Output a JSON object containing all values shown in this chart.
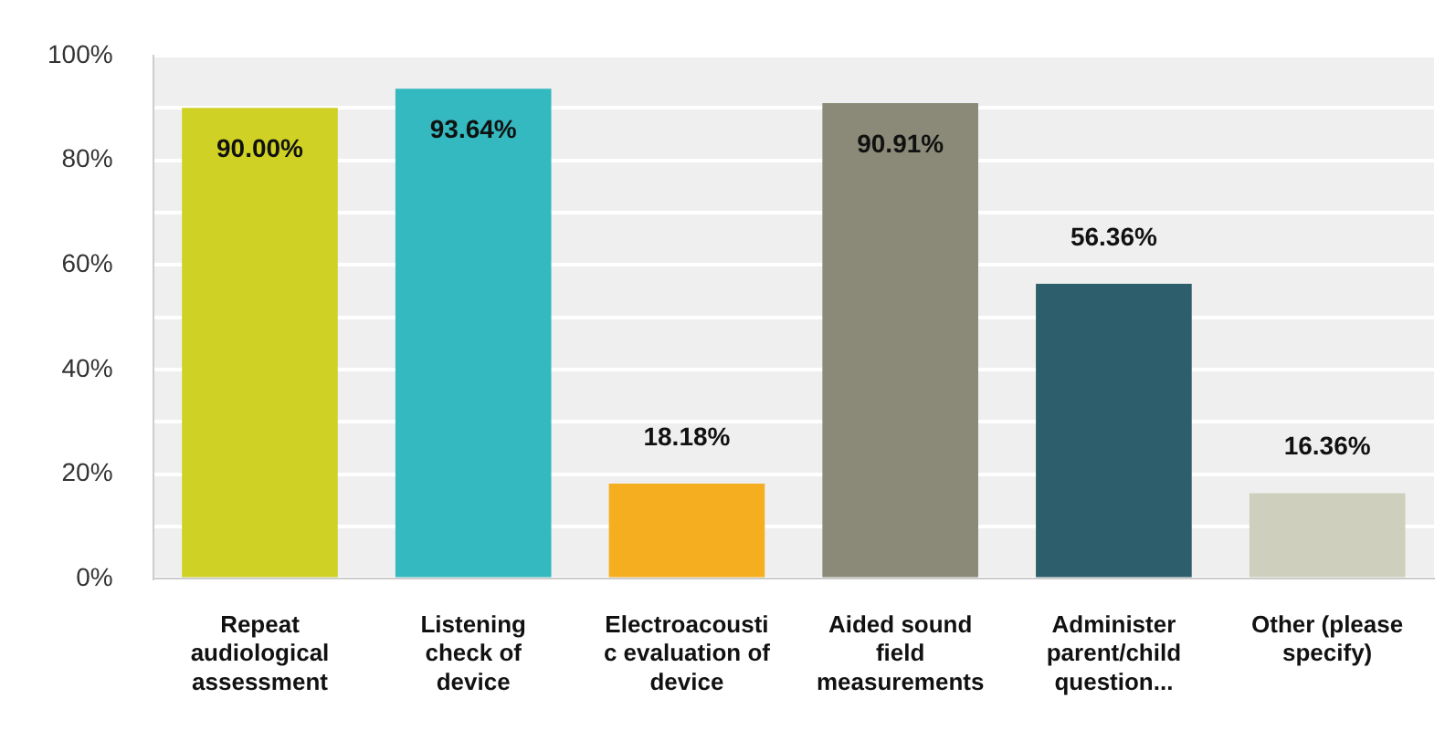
{
  "chart_data": {
    "type": "bar",
    "categories": [
      "Repeat audiological assessment",
      "Listening check of device",
      "Electroacoustic evaluation of device",
      "Aided sound field measurements",
      "Administer parent/child question...",
      "Other (please specify)"
    ],
    "values": [
      90.0,
      93.64,
      18.18,
      90.91,
      56.36,
      16.36
    ],
    "colors": [
      "#cfd125",
      "#33b9bf",
      "#f5ae1f",
      "#8b8a78",
      "#2d5e6b",
      "#cfcfbe"
    ],
    "value_labels": [
      "90.00%",
      "93.64%",
      "18.18%",
      "90.91%",
      "56.36%",
      "16.36%"
    ],
    "ylim": [
      0,
      100
    ],
    "yticks": [
      {
        "value": 0,
        "label": "0%"
      },
      {
        "value": 10,
        "label": null
      },
      {
        "value": 20,
        "label": "20%"
      },
      {
        "value": 30,
        "label": null
      },
      {
        "value": 40,
        "label": "40%"
      },
      {
        "value": 50,
        "label": null
      },
      {
        "value": 60,
        "label": "60%"
      },
      {
        "value": 70,
        "label": null
      },
      {
        "value": 80,
        "label": "80%"
      },
      {
        "value": 90,
        "label": null
      },
      {
        "value": 100,
        "label": "100%"
      }
    ],
    "grid": "y",
    "legend": false
  }
}
